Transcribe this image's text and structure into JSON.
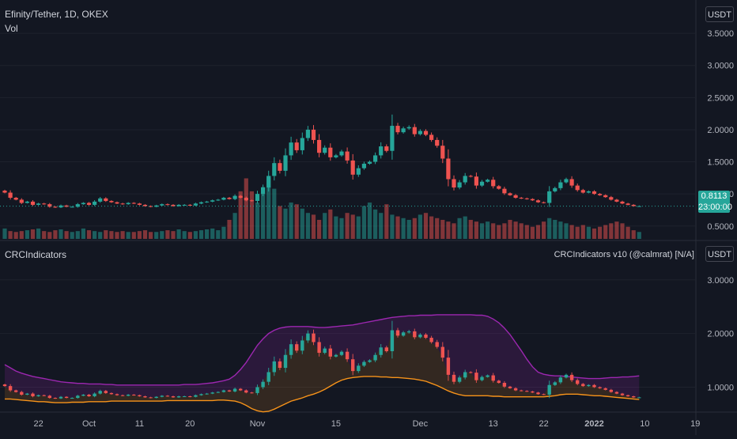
{
  "header": {
    "symbol_line": "Efinity/Tether, 1D, OKEX",
    "volume_label": "Vol"
  },
  "currency_chip": "USDT",
  "indicator": {
    "name": "CRCIndicators",
    "title": "CRCIndicators v10 (@calmrat) [N/A]"
  },
  "last_price": {
    "price": "0.8113",
    "countdown": "23:00:00"
  },
  "colors": {
    "up": "#26a69a",
    "down": "#ef5350",
    "background": "#131722",
    "upper_band": "#9c27b0",
    "lower_band": "#f7931a",
    "grid": "#1e222d",
    "text": "#b2b5be"
  },
  "chart_data": {
    "type": "candlestick",
    "main_axis": {
      "ticks": [
        "3.5000",
        "3.0000",
        "2.5000",
        "2.0000",
        "1.5000",
        "1.0000",
        "0.5000"
      ],
      "ylim": [
        0.3,
        3.6
      ]
    },
    "indicator_axis": {
      "ticks": [
        "3.0000",
        "2.0000",
        "1.0000"
      ],
      "ylim": [
        0.55,
        3.35
      ]
    },
    "x_ticks": [
      "22",
      "Oct",
      "11",
      "20",
      "Nov",
      "15",
      "Dec",
      "13",
      "22",
      "2022",
      "10",
      "19"
    ],
    "series": [
      {
        "name": "close",
        "values": [
          1.02,
          0.94,
          0.91,
          0.86,
          0.88,
          0.83,
          0.85,
          0.84,
          0.8,
          0.79,
          0.82,
          0.8,
          0.8,
          0.84,
          0.86,
          0.83,
          0.88,
          0.93,
          0.89,
          0.87,
          0.85,
          0.84,
          0.86,
          0.85,
          0.83,
          0.81,
          0.8,
          0.82,
          0.84,
          0.83,
          0.81,
          0.83,
          0.83,
          0.82,
          0.85,
          0.87,
          0.88,
          0.9,
          0.91,
          0.94,
          0.92,
          0.97,
          0.94,
          0.9,
          0.89,
          1.0,
          1.1,
          1.28,
          1.48,
          1.36,
          1.6,
          1.8,
          1.68,
          1.87,
          2.0,
          1.84,
          1.64,
          1.72,
          1.57,
          1.6,
          1.66,
          1.52,
          1.3,
          1.4,
          1.47,
          1.5,
          1.6,
          1.74,
          1.67,
          2.06,
          1.96,
          2.02,
          2.04,
          1.93,
          1.98,
          1.92,
          1.84,
          1.75,
          1.55,
          1.23,
          1.1,
          1.18,
          1.28,
          1.27,
          1.13,
          1.19,
          1.22,
          1.12,
          1.08,
          1.01,
          0.98,
          0.94,
          0.93,
          0.92,
          0.9,
          0.87,
          0.86,
          1.04,
          1.09,
          1.18,
          1.23,
          1.13,
          1.06,
          1.02,
          1.04,
          1.0,
          0.98,
          0.95,
          0.91,
          0.88,
          0.85,
          0.83,
          0.81,
          0.81
        ]
      },
      {
        "name": "volume",
        "values": [
          12,
          9,
          8,
          9,
          10,
          11,
          12,
          9,
          8,
          10,
          11,
          9,
          8,
          9,
          12,
          10,
          9,
          8,
          10,
          9,
          8,
          9,
          8,
          8,
          9,
          10,
          8,
          8,
          9,
          10,
          9,
          11,
          9,
          8,
          9,
          10,
          11,
          12,
          10,
          14,
          22,
          30,
          55,
          70,
          55,
          42,
          60,
          70,
          58,
          38,
          35,
          42,
          40,
          35,
          30,
          28,
          22,
          30,
          34,
          26,
          24,
          30,
          28,
          26,
          38,
          42,
          34,
          30,
          40,
          28,
          26,
          24,
          22,
          24,
          28,
          30,
          26,
          24,
          22,
          20,
          18,
          24,
          26,
          22,
          20,
          18,
          20,
          18,
          16,
          18,
          22,
          20,
          18,
          16,
          14,
          16,
          20,
          24,
          22,
          20,
          18,
          16,
          14,
          16,
          14,
          12,
          14,
          16,
          18,
          20,
          18,
          14,
          10,
          8
        ]
      },
      {
        "name": "upper band",
        "values": [
          1.42,
          1.36,
          1.3,
          1.26,
          1.23,
          1.2,
          1.18,
          1.16,
          1.14,
          1.12,
          1.1,
          1.09,
          1.08,
          1.07,
          1.07,
          1.06,
          1.06,
          1.06,
          1.05,
          1.05,
          1.04,
          1.04,
          1.04,
          1.04,
          1.04,
          1.04,
          1.04,
          1.04,
          1.04,
          1.04,
          1.04,
          1.04,
          1.05,
          1.05,
          1.05,
          1.06,
          1.07,
          1.08,
          1.1,
          1.12,
          1.15,
          1.22,
          1.33,
          1.46,
          1.62,
          1.78,
          1.9,
          2.0,
          2.06,
          2.1,
          2.12,
          2.13,
          2.13,
          2.13,
          2.13,
          2.12,
          2.11,
          2.11,
          2.12,
          2.13,
          2.14,
          2.15,
          2.16,
          2.18,
          2.2,
          2.22,
          2.24,
          2.26,
          2.28,
          2.3,
          2.31,
          2.32,
          2.33,
          2.33,
          2.34,
          2.34,
          2.34,
          2.35,
          2.35,
          2.35,
          2.35,
          2.35,
          2.35,
          2.35,
          2.34,
          2.34,
          2.32,
          2.27,
          2.2,
          2.1,
          1.98,
          1.83,
          1.68,
          1.52,
          1.38,
          1.28,
          1.24,
          1.22,
          1.21,
          1.21,
          1.2,
          1.19,
          1.18,
          1.17,
          1.16,
          1.16,
          1.16,
          1.17,
          1.18,
          1.18,
          1.19,
          1.19,
          1.2,
          1.21
        ]
      },
      {
        "name": "lower band",
        "values": [
          0.78,
          0.78,
          0.77,
          0.76,
          0.75,
          0.74,
          0.73,
          0.73,
          0.72,
          0.71,
          0.71,
          0.71,
          0.72,
          0.72,
          0.72,
          0.73,
          0.73,
          0.73,
          0.73,
          0.74,
          0.74,
          0.74,
          0.74,
          0.74,
          0.74,
          0.74,
          0.74,
          0.74,
          0.74,
          0.75,
          0.75,
          0.75,
          0.75,
          0.75,
          0.75,
          0.75,
          0.75,
          0.75,
          0.76,
          0.76,
          0.75,
          0.74,
          0.71,
          0.66,
          0.6,
          0.56,
          0.54,
          0.55,
          0.59,
          0.64,
          0.69,
          0.74,
          0.77,
          0.8,
          0.84,
          0.87,
          0.91,
          0.96,
          1.02,
          1.08,
          1.13,
          1.16,
          1.18,
          1.19,
          1.2,
          1.2,
          1.2,
          1.19,
          1.19,
          1.18,
          1.18,
          1.17,
          1.16,
          1.15,
          1.13,
          1.11,
          1.07,
          1.03,
          0.98,
          0.93,
          0.89,
          0.86,
          0.84,
          0.84,
          0.84,
          0.84,
          0.84,
          0.83,
          0.83,
          0.82,
          0.82,
          0.82,
          0.82,
          0.82,
          0.82,
          0.82,
          0.82,
          0.83,
          0.84,
          0.86,
          0.87,
          0.87,
          0.87,
          0.86,
          0.85,
          0.84,
          0.84,
          0.83,
          0.82,
          0.81,
          0.8,
          0.79,
          0.78,
          0.77
        ]
      }
    ]
  }
}
